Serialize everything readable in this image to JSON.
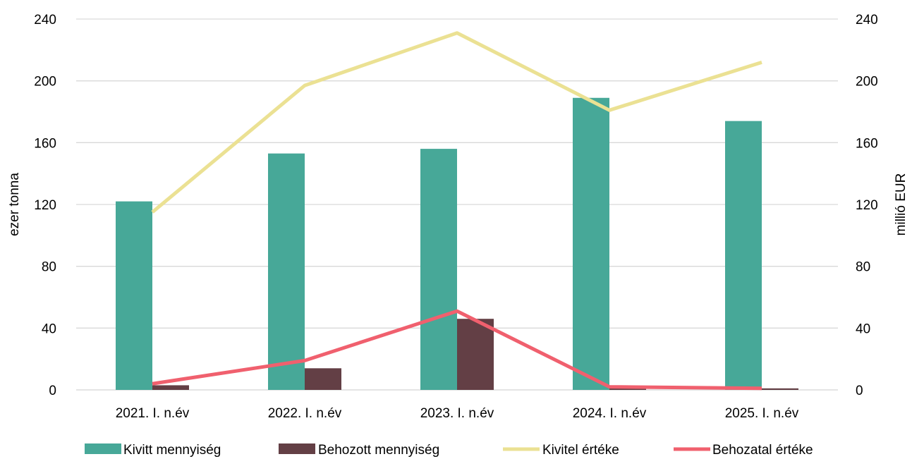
{
  "chart_data": {
    "type": "bar",
    "categories": [
      "2021. I. n.év",
      "2022. I. n.év",
      "2023. I. n.év",
      "2024. I. n.év",
      "2025. I. n.év"
    ],
    "series": [
      {
        "name": "Kivitt mennyiség",
        "kind": "bar",
        "axis": "left",
        "color": "#47a898",
        "values": [
          122,
          153,
          156,
          189,
          174
        ]
      },
      {
        "name": "Behozott mennyiség",
        "kind": "bar",
        "axis": "left",
        "color": "#633f45",
        "values": [
          3,
          14,
          46,
          1,
          1
        ]
      },
      {
        "name": "Kivitel értéke",
        "kind": "line",
        "axis": "right",
        "color": "#ebe193",
        "values": [
          115,
          197,
          231,
          181,
          212
        ]
      },
      {
        "name": "Behozatal értéke",
        "kind": "line",
        "axis": "right",
        "color": "#f0606e",
        "values": [
          4,
          19,
          51,
          2,
          1
        ]
      }
    ],
    "ylabel": "ezer tonna",
    "y2label": "millió EUR",
    "ylim": [
      0,
      240
    ],
    "y2lim": [
      0,
      240
    ],
    "yticks": [
      0,
      40,
      80,
      120,
      160,
      200,
      240
    ],
    "y2ticks": [
      0,
      40,
      80,
      120,
      160,
      200,
      240
    ],
    "grid": true,
    "legend_position": "bottom"
  }
}
